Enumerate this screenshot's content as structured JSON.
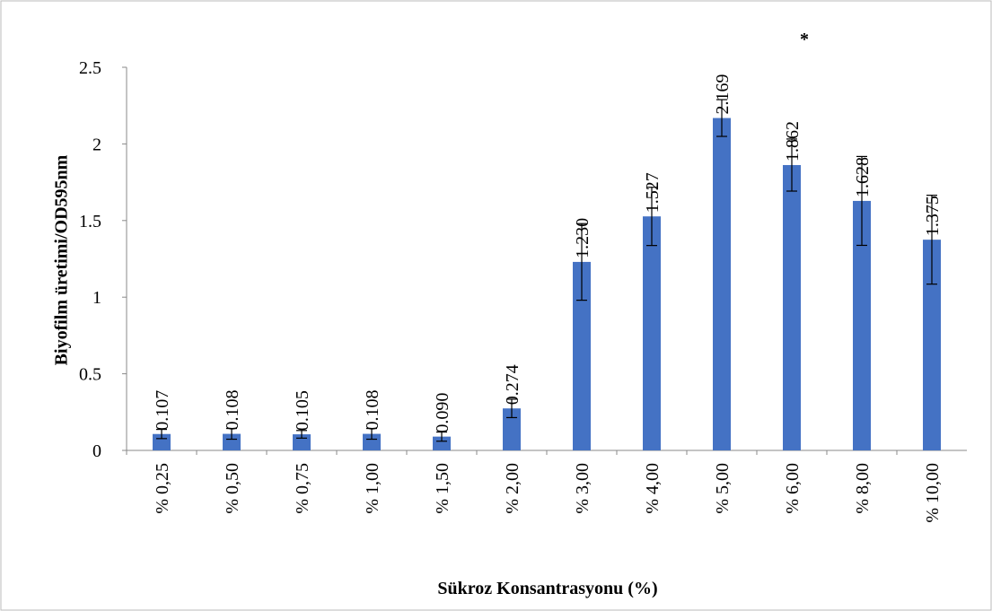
{
  "chart_data": {
    "type": "bar",
    "categories": [
      "% 0,25",
      "% 0,50",
      "% 0,75",
      "% 1,00",
      "% 1,50",
      "% 2,00",
      "% 3,00",
      "% 4,00",
      "% 5,00",
      "% 6,00",
      "% 8,00",
      "% 10,00"
    ],
    "values": [
      0.107,
      0.108,
      0.105,
      0.108,
      0.09,
      0.274,
      1.23,
      1.527,
      2.169,
      1.862,
      1.628,
      1.375
    ],
    "value_labels": [
      "0.107",
      "0.108",
      "0.105",
      "0.108",
      "0.090",
      "0.274",
      "1.230",
      "1.527",
      "2.169",
      "1.862",
      "1.628",
      "1.375"
    ],
    "errors": [
      0.03,
      0.035,
      0.025,
      0.035,
      0.03,
      0.06,
      0.25,
      0.19,
      0.12,
      0.17,
      0.29,
      0.29
    ],
    "color": "#4472c4",
    "x_label": "Sükroz Konsantrasyonu (%)",
    "y_label": "Biyofilm üretimi/OD595nm",
    "annotation": "*",
    "ylim": [
      0,
      2.5
    ],
    "yticks": [
      0,
      0.5,
      1,
      1.5,
      2,
      2.5
    ],
    "grid": false
  }
}
